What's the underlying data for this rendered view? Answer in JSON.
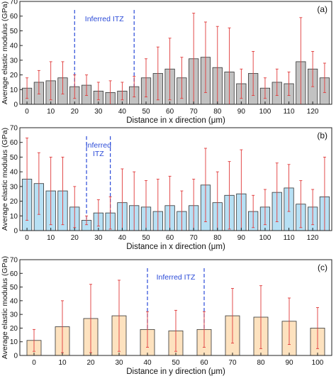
{
  "chart_data": [
    {
      "type": "bar",
      "panel_label": "(a)",
      "xlabel": "Distance in x direction (μm)",
      "ylabel": "Average elastic modulus (GPa)",
      "xlim": [
        -3,
        128
      ],
      "ylim": [
        0,
        70
      ],
      "xticks": [
        0,
        10,
        20,
        30,
        40,
        50,
        60,
        70,
        80,
        90,
        100,
        110,
        120
      ],
      "yticks": [
        0,
        10,
        20,
        30,
        40,
        50,
        60,
        70
      ],
      "bar_width": 4,
      "bar_color": "#c2c2c2",
      "error_color": "#e03a3a",
      "annotation": {
        "text": "Inferred ITZ",
        "lines_x": [
          20,
          45
        ],
        "color": "#2b4bd8"
      },
      "x": [
        0,
        5,
        10,
        15,
        20,
        25,
        30,
        35,
        40,
        45,
        50,
        55,
        60,
        65,
        70,
        75,
        80,
        85,
        90,
        95,
        100,
        105,
        110,
        115,
        120,
        125
      ],
      "values": [
        11,
        15,
        16,
        18,
        12,
        13,
        9,
        8,
        9,
        12,
        18,
        21,
        24,
        18,
        31,
        32,
        25,
        22,
        14,
        21,
        11,
        15,
        14,
        29,
        24,
        18
      ],
      "errors": [
        7,
        8,
        13,
        11,
        8,
        7,
        6,
        8,
        6,
        7,
        13,
        18,
        21,
        14,
        31,
        24,
        28,
        30,
        10,
        15,
        7,
        9,
        8,
        30,
        12,
        10
      ]
    },
    {
      "type": "bar",
      "panel_label": "(b)",
      "xlabel": "Distance in x direction (μm)",
      "ylabel": "Average elastic modulus (GPa)",
      "xlim": [
        -3,
        128
      ],
      "ylim": [
        0,
        70
      ],
      "xticks": [
        0,
        10,
        20,
        30,
        40,
        50,
        60,
        70,
        80,
        90,
        100,
        110,
        120
      ],
      "yticks": [
        0,
        10,
        20,
        30,
        40,
        50,
        60,
        70
      ],
      "bar_width": 4,
      "bar_color": "#b7e0f4",
      "error_color": "#e03a3a",
      "annotation": {
        "text": "Inferred\nITZ",
        "lines_x": [
          25,
          35
        ],
        "color": "#2b4bd8"
      },
      "x": [
        0,
        5,
        10,
        15,
        20,
        25,
        30,
        35,
        40,
        45,
        50,
        55,
        60,
        65,
        70,
        75,
        80,
        85,
        90,
        95,
        100,
        105,
        110,
        115,
        120,
        125
      ],
      "values": [
        35,
        32,
        27,
        27,
        16,
        7,
        12,
        12,
        19,
        17,
        16,
        13,
        17,
        13,
        17,
        31,
        19,
        24,
        25,
        13,
        16,
        26,
        29,
        18,
        16,
        23
      ],
      "errors": [
        28,
        21,
        23,
        23,
        14,
        3,
        9,
        11,
        23,
        23,
        18,
        22,
        20,
        14,
        18,
        25,
        21,
        23,
        30,
        11,
        12,
        20,
        16,
        16,
        12,
        27
      ]
    },
    {
      "type": "bar",
      "panel_label": "(c)",
      "xlabel": "Distance in y direction (μm)",
      "ylabel": "Average elastic modulus (GPa)",
      "xlim": [
        -5,
        105
      ],
      "ylim": [
        0,
        70
      ],
      "xticks": [
        0,
        10,
        20,
        30,
        40,
        50,
        60,
        70,
        80,
        90,
        100
      ],
      "yticks": [
        0,
        10,
        20,
        30,
        40,
        50,
        60,
        70
      ],
      "bar_width": 5,
      "bar_color": "#fde2bf",
      "error_color": "#e03a3a",
      "annotation": {
        "text": "Inferred ITZ",
        "lines_x": [
          40,
          60
        ],
        "color": "#2b4bd8"
      },
      "x": [
        0,
        10,
        20,
        30,
        40,
        50,
        60,
        70,
        80,
        90,
        100
      ],
      "values": [
        11,
        21,
        27,
        29,
        19,
        18,
        19,
        29,
        28,
        25,
        20
      ],
      "errors": [
        8,
        19,
        25,
        26,
        13,
        15,
        13,
        20,
        23,
        17,
        15
      ]
    }
  ]
}
